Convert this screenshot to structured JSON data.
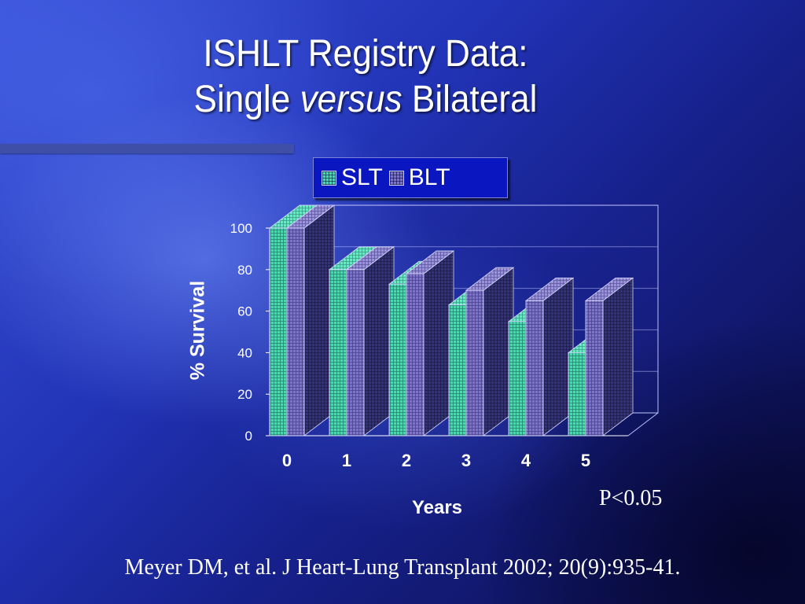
{
  "slide": {
    "title_line1": "ISHLT Registry Data:",
    "title_line2_pre": "Single",
    "title_line2_em": "versus",
    "title_line2_post": "Bilateral",
    "p_value": "P<0.05",
    "citation": "Meyer DM, et al. J Heart-Lung Transplant 2002; 20(9):935-41."
  },
  "colors": {
    "slt": "#3fe0a8",
    "blt": "#7c74c8",
    "background": "#2234b8",
    "text": "#ffffff"
  },
  "chart_data": {
    "type": "bar",
    "categories": [
      "0",
      "1",
      "2",
      "3",
      "4",
      "5"
    ],
    "series": [
      {
        "name": "SLT",
        "values": [
          100,
          80,
          73,
          63,
          55,
          40
        ]
      },
      {
        "name": "BLT",
        "values": [
          100,
          80,
          78,
          70,
          65,
          65
        ]
      }
    ],
    "xlabel": "Years",
    "ylabel": "% Survival",
    "ylim": [
      0,
      100
    ],
    "yticks": [
      0,
      20,
      40,
      60,
      80,
      100
    ],
    "legend_position": "top",
    "grid": true,
    "style": "3d-clustered"
  }
}
